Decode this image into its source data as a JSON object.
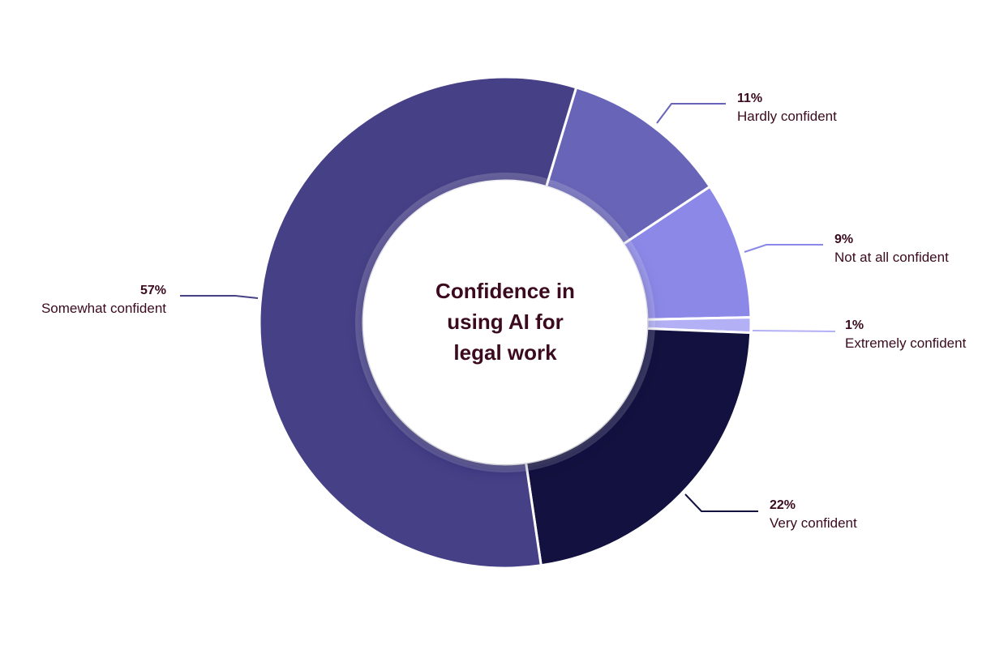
{
  "chart_data": {
    "type": "donut",
    "title": "Confidence in using AI for legal work",
    "categories": [
      "Hardly confident",
      "Not at all confident",
      "Extremely confident",
      "Very confident",
      "Somewhat confident"
    ],
    "values": [
      11,
      9,
      1,
      22,
      57
    ],
    "value_labels": [
      "11%",
      "9%",
      "1%",
      "22%",
      "57%"
    ],
    "colors": [
      "#6865b8",
      "#8b88e8",
      "#b3b0f5",
      "#12113f",
      "#464087"
    ]
  }
}
